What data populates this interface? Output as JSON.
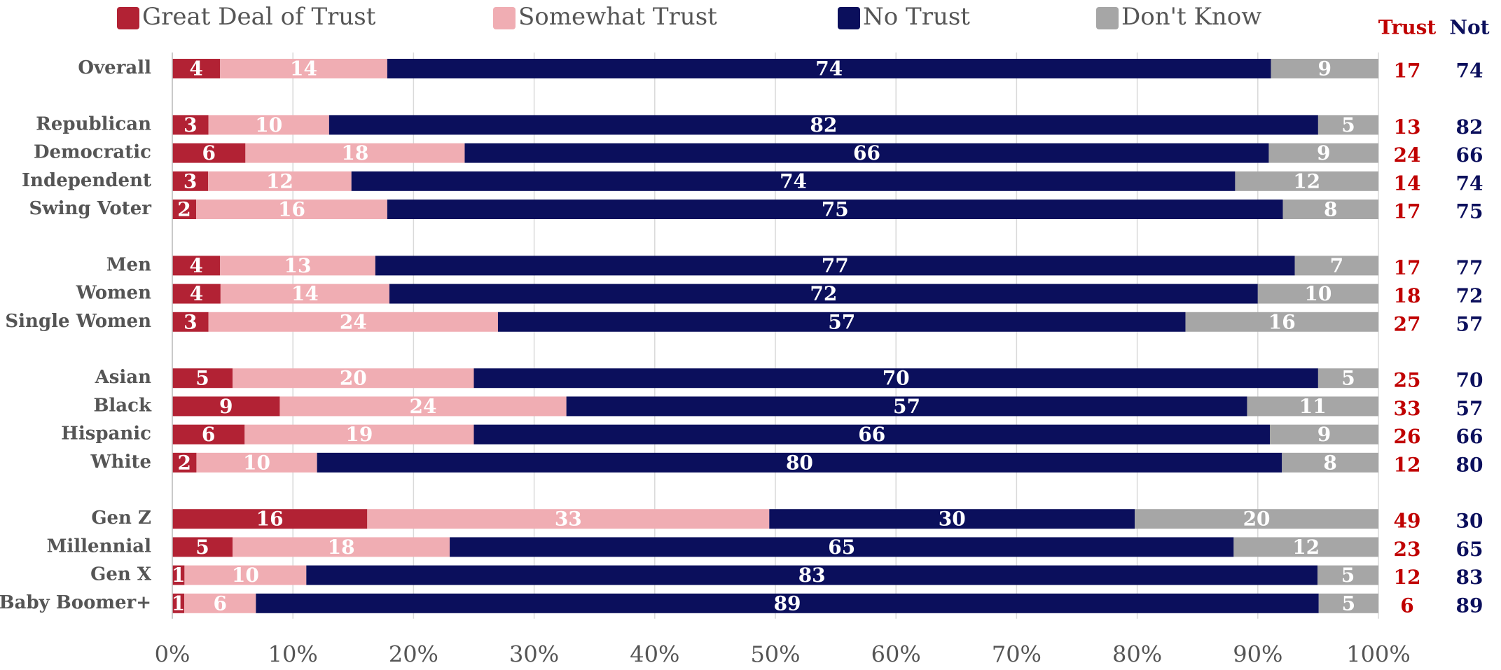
{
  "chart_data": {
    "type": "bar",
    "orientation": "horizontal",
    "stacked": "percent",
    "categories": [
      "Overall",
      null,
      "Republican",
      "Democratic",
      "Independent",
      "Swing Voter",
      null,
      "Men",
      "Women",
      "Single Women",
      null,
      "Asian",
      "Black",
      "Hispanic",
      "White",
      null,
      "Gen Z",
      "Millennial",
      "Gen X",
      "Baby Boomer+"
    ],
    "series": [
      {
        "name": "Great Deal of Trust",
        "color": "#b22234",
        "values": [
          4,
          null,
          3,
          6,
          3,
          2,
          null,
          4,
          4,
          3,
          null,
          5,
          9,
          6,
          2,
          null,
          16,
          5,
          1,
          1
        ]
      },
      {
        "name": "Somewhat Trust",
        "color": "#f0adb3",
        "values": [
          14,
          null,
          10,
          18,
          12,
          16,
          null,
          13,
          14,
          24,
          null,
          20,
          24,
          19,
          10,
          null,
          33,
          18,
          10,
          6
        ]
      },
      {
        "name": "No Trust",
        "color": "#0b0f5c",
        "values": [
          74,
          null,
          82,
          66,
          74,
          75,
          null,
          77,
          72,
          57,
          null,
          70,
          57,
          66,
          80,
          null,
          30,
          65,
          83,
          89
        ]
      },
      {
        "name": "Don't Know",
        "color": "#a6a6a6",
        "values": [
          9,
          null,
          5,
          9,
          12,
          8,
          null,
          7,
          10,
          16,
          null,
          5,
          11,
          9,
          8,
          null,
          20,
          12,
          5,
          5
        ]
      }
    ],
    "side_columns": [
      {
        "name": "Trust",
        "color": "#c00000",
        "values": [
          17,
          null,
          13,
          24,
          14,
          17,
          null,
          17,
          18,
          27,
          null,
          25,
          33,
          26,
          12,
          null,
          49,
          23,
          12,
          6
        ]
      },
      {
        "name": "Not",
        "color": "#0b0f5c",
        "values": [
          74,
          null,
          82,
          66,
          74,
          75,
          null,
          77,
          72,
          57,
          null,
          70,
          57,
          66,
          80,
          null,
          30,
          65,
          83,
          89
        ]
      }
    ],
    "xlim": [
      0,
      100
    ],
    "xticks": [
      {
        "value": 0,
        "label": "0%"
      },
      {
        "value": 10,
        "label": "10%"
      },
      {
        "value": 20,
        "label": "20%"
      },
      {
        "value": 30,
        "label": "30%"
      },
      {
        "value": 40,
        "label": "40%"
      },
      {
        "value": 50,
        "label": "50%"
      },
      {
        "value": 60,
        "label": "60%"
      },
      {
        "value": 70,
        "label": "70%"
      },
      {
        "value": 80,
        "label": "80%"
      },
      {
        "value": 90,
        "label": "90%"
      },
      {
        "value": 100,
        "label": "100%"
      }
    ],
    "grid": true,
    "legend": "top"
  }
}
